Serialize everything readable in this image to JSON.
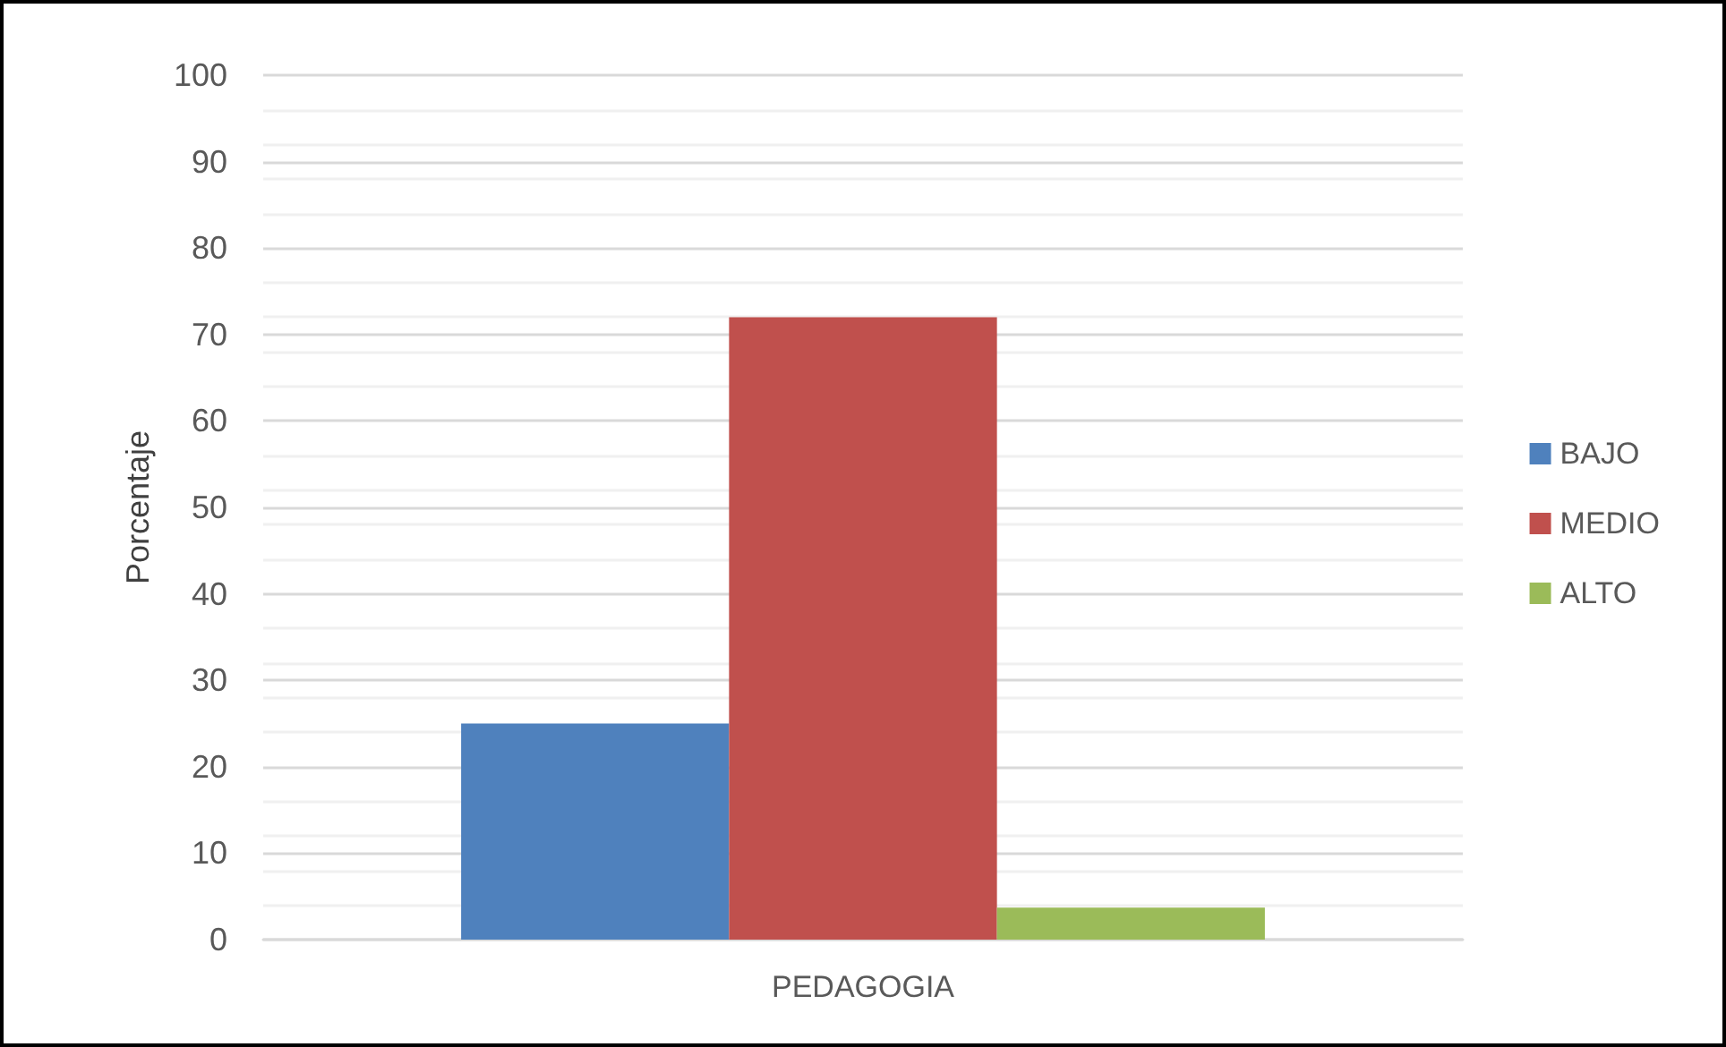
{
  "chart_data": {
    "type": "bar",
    "ylabel": "Porcentaje",
    "categories": [
      "PEDAGOGIA"
    ],
    "series": [
      {
        "name": "BAJO",
        "color": "#4f81bd",
        "values": [
          25
        ]
      },
      {
        "name": "MEDIO",
        "color": "#c0504d",
        "values": [
          72
        ]
      },
      {
        "name": "ALTO",
        "color": "#9bbb59",
        "values": [
          3.7
        ]
      }
    ],
    "ylim": [
      0,
      100
    ],
    "yticks": [
      0,
      10,
      20,
      30,
      40,
      50,
      60,
      70,
      80,
      90,
      100
    ],
    "grid": "y",
    "legend": "right"
  }
}
